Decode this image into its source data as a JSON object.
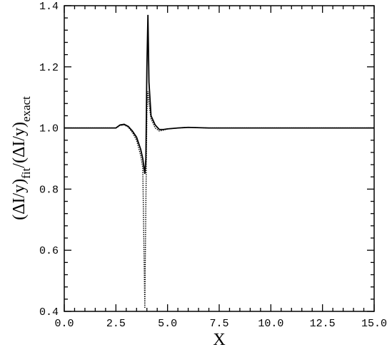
{
  "chart_data": {
    "type": "line",
    "xlabel": "X",
    "ylabel": [
      "(ΔI/y)",
      "fit",
      "/(ΔI/y)",
      "exact"
    ],
    "x": [
      0,
      2.5,
      2.7,
      2.9,
      3.1,
      3.3,
      3.5,
      3.7,
      3.8,
      3.9,
      3.95,
      4.0,
      4.05,
      4.1,
      4.2,
      4.4,
      4.6,
      4.8,
      5.0,
      5.5,
      6.0,
      7.0,
      8.0,
      10,
      12,
      15
    ],
    "series": [
      {
        "color": "#000000",
        "style": "solid",
        "values": [
          1,
          1,
          1.01,
          1.012,
          1.005,
          0.99,
          0.97,
          0.93,
          0.9,
          0.85,
          0.9,
          1.2,
          1.37,
          1.15,
          1.04,
          1.01,
          0.995,
          0.995,
          0.997,
          1.0,
          1.002,
          1.0,
          1.0,
          1.0,
          1.0,
          1.0
        ]
      },
      {
        "color": "#000000",
        "style": "dotted",
        "values": [
          1,
          1,
          1.008,
          1.01,
          1.003,
          0.985,
          0.96,
          0.91,
          0.87,
          0.41,
          0.75,
          1.05,
          1.12,
          1.08,
          1.03,
          1.0,
          0.99,
          0.993,
          0.997,
          1.0,
          1.002,
          1.0,
          1.0,
          1.0,
          1.0,
          1.0
        ]
      }
    ],
    "xlim": [
      0,
      15
    ],
    "xticks": [
      {
        "value": 0,
        "label": "0.0"
      },
      2.5,
      {
        "value": 5,
        "label": "5.0"
      },
      7.5,
      {
        "value": 10,
        "label": "10.0"
      },
      12.5,
      {
        "value": 15,
        "label": "15.0"
      }
    ],
    "ylim": [
      0.4,
      1.4
    ],
    "yticks": [
      0.4,
      0.6,
      0.8,
      {
        "value": 1,
        "label": "1.0"
      },
      1.2,
      1.4
    ]
  }
}
